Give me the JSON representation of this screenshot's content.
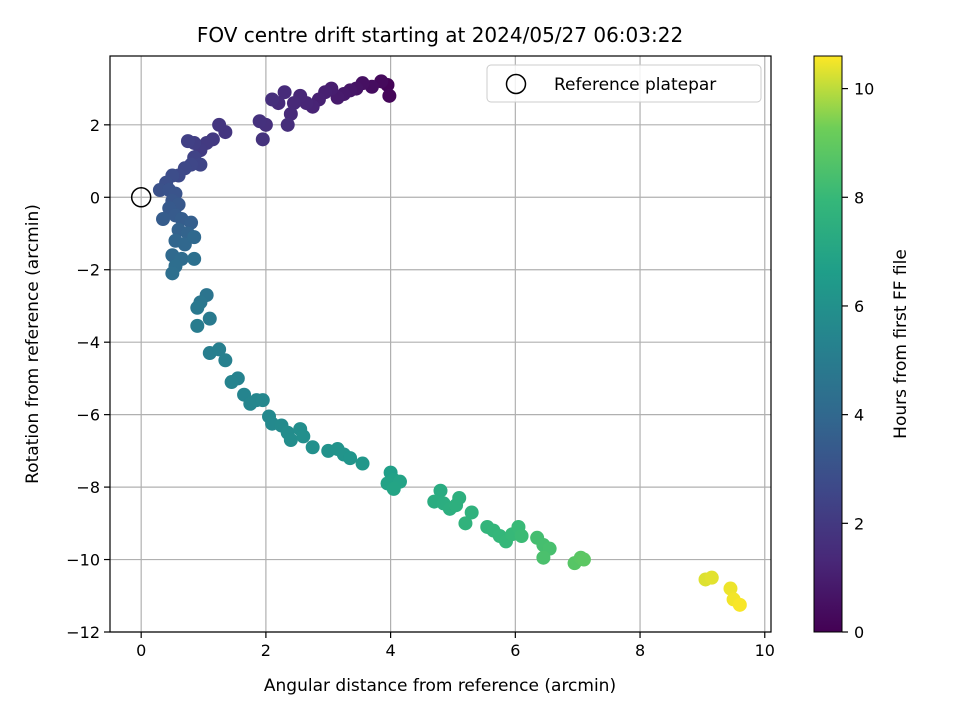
{
  "chart_data": {
    "type": "scatter",
    "title": "FOV centre drift starting at 2024/05/27 06:03:22",
    "xlabel": "Angular distance from reference (arcmin)",
    "ylabel": "Rotation from reference (arcmin)",
    "xlim": [
      -0.5,
      10.1
    ],
    "ylim": [
      -12,
      3.9
    ],
    "xticks": [
      0,
      2,
      4,
      6,
      8,
      10
    ],
    "yticks": [
      -12,
      -10,
      -8,
      -6,
      -4,
      -2,
      0,
      2
    ],
    "grid": true,
    "legend": {
      "placement": "top-right",
      "entries": [
        "Reference platepar"
      ]
    },
    "reference_point": {
      "x": 0,
      "y": 0,
      "label": "Reference platepar"
    },
    "colorbar": {
      "label": "Hours from first FF file",
      "range": [
        0,
        10.6
      ],
      "ticks": [
        0,
        2,
        4,
        6,
        8,
        10
      ],
      "colormap": "viridis"
    },
    "points": [
      {
        "x": 3.95,
        "y": 3.1,
        "c": 0.1
      },
      {
        "x": 3.98,
        "y": 2.8,
        "c": 0.2
      },
      {
        "x": 3.85,
        "y": 3.2,
        "c": 0.3
      },
      {
        "x": 3.7,
        "y": 3.05,
        "c": 0.4
      },
      {
        "x": 3.55,
        "y": 3.15,
        "c": 0.5
      },
      {
        "x": 3.45,
        "y": 3.0,
        "c": 0.6
      },
      {
        "x": 3.35,
        "y": 2.95,
        "c": 0.7
      },
      {
        "x": 3.25,
        "y": 2.85,
        "c": 0.8
      },
      {
        "x": 3.15,
        "y": 2.75,
        "c": 0.9
      },
      {
        "x": 3.05,
        "y": 3.0,
        "c": 1.0
      },
      {
        "x": 2.95,
        "y": 2.9,
        "c": 1.05
      },
      {
        "x": 2.85,
        "y": 2.7,
        "c": 1.1
      },
      {
        "x": 2.75,
        "y": 2.5,
        "c": 1.2
      },
      {
        "x": 2.65,
        "y": 2.6,
        "c": 1.25
      },
      {
        "x": 2.55,
        "y": 2.8,
        "c": 1.3
      },
      {
        "x": 2.45,
        "y": 2.6,
        "c": 1.35
      },
      {
        "x": 2.4,
        "y": 2.3,
        "c": 1.4
      },
      {
        "x": 2.3,
        "y": 2.9,
        "c": 1.45
      },
      {
        "x": 2.2,
        "y": 2.6,
        "c": 1.5
      },
      {
        "x": 2.35,
        "y": 2.0,
        "c": 1.55
      },
      {
        "x": 2.1,
        "y": 2.7,
        "c": 1.6
      },
      {
        "x": 2.0,
        "y": 2.0,
        "c": 1.65
      },
      {
        "x": 1.9,
        "y": 2.1,
        "c": 1.7
      },
      {
        "x": 1.95,
        "y": 1.6,
        "c": 1.75
      },
      {
        "x": 1.35,
        "y": 1.8,
        "c": 1.85
      },
      {
        "x": 1.25,
        "y": 2.0,
        "c": 1.9
      },
      {
        "x": 1.15,
        "y": 1.6,
        "c": 2.0
      },
      {
        "x": 1.05,
        "y": 1.5,
        "c": 2.05
      },
      {
        "x": 0.95,
        "y": 1.3,
        "c": 2.1
      },
      {
        "x": 0.85,
        "y": 1.5,
        "c": 2.2
      },
      {
        "x": 0.75,
        "y": 1.55,
        "c": 2.3
      },
      {
        "x": 0.85,
        "y": 1.1,
        "c": 2.4
      },
      {
        "x": 0.95,
        "y": 0.9,
        "c": 2.5
      },
      {
        "x": 0.8,
        "y": 0.9,
        "c": 2.55
      },
      {
        "x": 0.7,
        "y": 0.8,
        "c": 2.6
      },
      {
        "x": 0.6,
        "y": 0.6,
        "c": 2.7
      },
      {
        "x": 0.5,
        "y": 0.6,
        "c": 2.8
      },
      {
        "x": 0.4,
        "y": 0.4,
        "c": 2.9
      },
      {
        "x": 0.3,
        "y": 0.2,
        "c": 3.0
      },
      {
        "x": 0.45,
        "y": 0.2,
        "c": 3.05
      },
      {
        "x": 0.55,
        "y": 0.1,
        "c": 3.1
      },
      {
        "x": 0.5,
        "y": -0.1,
        "c": 3.2
      },
      {
        "x": 0.6,
        "y": -0.2,
        "c": 3.3
      },
      {
        "x": 0.45,
        "y": -0.3,
        "c": 3.35
      },
      {
        "x": 0.55,
        "y": -0.5,
        "c": 3.4
      },
      {
        "x": 0.35,
        "y": -0.6,
        "c": 3.45
      },
      {
        "x": 0.65,
        "y": -0.6,
        "c": 3.5
      },
      {
        "x": 0.8,
        "y": -0.7,
        "c": 3.6
      },
      {
        "x": 0.6,
        "y": -0.9,
        "c": 3.7
      },
      {
        "x": 0.75,
        "y": -1.0,
        "c": 3.8
      },
      {
        "x": 0.55,
        "y": -1.2,
        "c": 3.9
      },
      {
        "x": 0.7,
        "y": -1.3,
        "c": 4.0
      },
      {
        "x": 0.85,
        "y": -1.1,
        "c": 4.05
      },
      {
        "x": 0.5,
        "y": -1.6,
        "c": 4.1
      },
      {
        "x": 0.65,
        "y": -1.7,
        "c": 4.2
      },
      {
        "x": 0.55,
        "y": -1.9,
        "c": 4.3
      },
      {
        "x": 0.5,
        "y": -2.1,
        "c": 4.35
      },
      {
        "x": 0.85,
        "y": -1.7,
        "c": 4.4
      },
      {
        "x": 1.05,
        "y": -2.7,
        "c": 4.6
      },
      {
        "x": 0.95,
        "y": -2.9,
        "c": 4.7
      },
      {
        "x": 0.9,
        "y": -3.05,
        "c": 4.8
      },
      {
        "x": 1.1,
        "y": -3.35,
        "c": 4.9
      },
      {
        "x": 0.9,
        "y": -3.55,
        "c": 5.0
      },
      {
        "x": 1.1,
        "y": -4.3,
        "c": 5.1
      },
      {
        "x": 1.25,
        "y": -4.2,
        "c": 5.15
      },
      {
        "x": 1.35,
        "y": -4.5,
        "c": 5.2
      },
      {
        "x": 1.55,
        "y": -5.0,
        "c": 5.3
      },
      {
        "x": 1.45,
        "y": -5.1,
        "c": 5.35
      },
      {
        "x": 1.65,
        "y": -5.45,
        "c": 5.4
      },
      {
        "x": 1.75,
        "y": -5.7,
        "c": 5.45
      },
      {
        "x": 1.85,
        "y": -5.6,
        "c": 5.5
      },
      {
        "x": 1.95,
        "y": -5.6,
        "c": 5.55
      },
      {
        "x": 2.05,
        "y": -6.05,
        "c": 5.6
      },
      {
        "x": 2.1,
        "y": -6.25,
        "c": 5.65
      },
      {
        "x": 2.25,
        "y": -6.3,
        "c": 5.7
      },
      {
        "x": 2.35,
        "y": -6.5,
        "c": 5.75
      },
      {
        "x": 2.4,
        "y": -6.7,
        "c": 5.8
      },
      {
        "x": 2.55,
        "y": -6.4,
        "c": 5.85
      },
      {
        "x": 2.6,
        "y": -6.6,
        "c": 5.9
      },
      {
        "x": 2.75,
        "y": -6.9,
        "c": 5.95
      },
      {
        "x": 3.0,
        "y": -7.0,
        "c": 6.05
      },
      {
        "x": 3.15,
        "y": -6.95,
        "c": 6.1
      },
      {
        "x": 3.25,
        "y": -7.1,
        "c": 6.15
      },
      {
        "x": 3.35,
        "y": -7.2,
        "c": 6.2
      },
      {
        "x": 3.55,
        "y": -7.35,
        "c": 6.3
      },
      {
        "x": 4.0,
        "y": -7.6,
        "c": 6.7
      },
      {
        "x": 4.05,
        "y": -7.8,
        "c": 6.8
      },
      {
        "x": 3.95,
        "y": -7.9,
        "c": 6.85
      },
      {
        "x": 4.15,
        "y": -7.85,
        "c": 6.9
      },
      {
        "x": 4.05,
        "y": -8.05,
        "c": 6.95
      },
      {
        "x": 4.8,
        "y": -8.1,
        "c": 7.3
      },
      {
        "x": 4.7,
        "y": -8.4,
        "c": 7.35
      },
      {
        "x": 4.85,
        "y": -8.45,
        "c": 7.4
      },
      {
        "x": 4.95,
        "y": -8.6,
        "c": 7.45
      },
      {
        "x": 5.05,
        "y": -8.5,
        "c": 7.5
      },
      {
        "x": 5.1,
        "y": -8.3,
        "c": 7.55
      },
      {
        "x": 5.3,
        "y": -8.7,
        "c": 7.65
      },
      {
        "x": 5.2,
        "y": -9.0,
        "c": 7.7
      },
      {
        "x": 5.55,
        "y": -9.1,
        "c": 7.8
      },
      {
        "x": 5.65,
        "y": -9.2,
        "c": 7.85
      },
      {
        "x": 5.75,
        "y": -9.35,
        "c": 7.9
      },
      {
        "x": 5.85,
        "y": -9.5,
        "c": 7.95
      },
      {
        "x": 5.95,
        "y": -9.3,
        "c": 8.0
      },
      {
        "x": 6.05,
        "y": -9.1,
        "c": 8.05
      },
      {
        "x": 6.1,
        "y": -9.35,
        "c": 8.1
      },
      {
        "x": 6.35,
        "y": -9.4,
        "c": 8.3
      },
      {
        "x": 6.45,
        "y": -9.6,
        "c": 8.35
      },
      {
        "x": 6.55,
        "y": -9.7,
        "c": 8.4
      },
      {
        "x": 6.45,
        "y": -9.95,
        "c": 8.45
      },
      {
        "x": 6.95,
        "y": -10.1,
        "c": 8.75
      },
      {
        "x": 7.05,
        "y": -9.95,
        "c": 8.8
      },
      {
        "x": 7.1,
        "y": -10.0,
        "c": 8.85
      },
      {
        "x": 9.05,
        "y": -10.55,
        "c": 10.3
      },
      {
        "x": 9.15,
        "y": -10.5,
        "c": 10.35
      },
      {
        "x": 9.45,
        "y": -10.8,
        "c": 10.45
      },
      {
        "x": 9.5,
        "y": -11.1,
        "c": 10.5
      },
      {
        "x": 9.6,
        "y": -11.25,
        "c": 10.55
      }
    ]
  }
}
